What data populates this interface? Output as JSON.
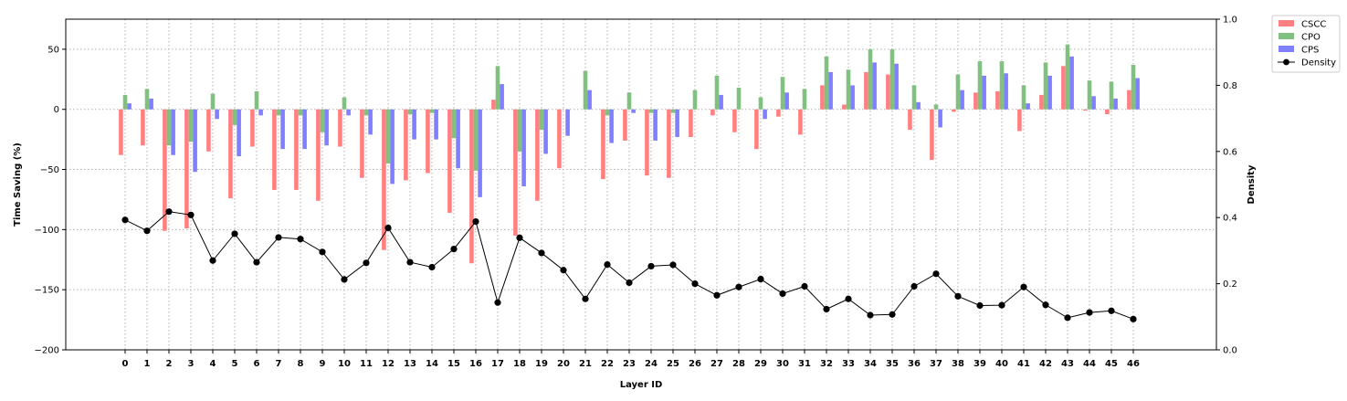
{
  "chart_data": {
    "type": "bar",
    "xlabel": "Layer ID",
    "ylabel": "Time Saving (%)",
    "y2label": "Density",
    "ylim": [
      -200,
      75
    ],
    "y2lim": [
      0.0,
      1.0
    ],
    "yticks": [
      50,
      0,
      -50,
      -100,
      -150,
      -200
    ],
    "yticklabels": [
      "50",
      "0",
      "−50",
      "−100",
      "−150",
      "−200"
    ],
    "y2ticks": [
      1.0,
      0.8,
      0.6,
      0.4,
      0.2,
      0.0
    ],
    "y2ticklabels": [
      "1.0",
      "0.8",
      "0.6",
      "0.4",
      "0.2",
      "0.0"
    ],
    "grid": true,
    "legend_position": "outside-top-right",
    "categories": [
      "0",
      "1",
      "2",
      "3",
      "4",
      "5",
      "6",
      "7",
      "8",
      "9",
      "10",
      "11",
      "12",
      "13",
      "14",
      "15",
      "16",
      "17",
      "18",
      "19",
      "20",
      "21",
      "22",
      "23",
      "24",
      "25",
      "26",
      "27",
      "28",
      "29",
      "30",
      "31",
      "32",
      "33",
      "34",
      "35",
      "36",
      "37",
      "38",
      "39",
      "40",
      "41",
      "42",
      "43",
      "44",
      "45",
      "46"
    ],
    "series": [
      {
        "name": "CSCC",
        "kind": "bar",
        "color": "#ff8080",
        "values": [
          -38,
          -30,
          -101,
          -99,
          -35,
          -74,
          -31,
          -67,
          -67,
          -76,
          -31,
          -57,
          -117,
          -59,
          -53,
          -86,
          -128,
          8,
          -105,
          -76,
          -49,
          0,
          -58,
          -26,
          -55,
          -57,
          -23,
          -5,
          -19,
          -33,
          -6,
          -21,
          20,
          4,
          31,
          29,
          -17,
          -42,
          -2,
          14,
          15,
          -18,
          12,
          36,
          -1,
          -4,
          16
        ]
      },
      {
        "name": "CPO",
        "kind": "bar",
        "color": "#80c080",
        "values": [
          12,
          17,
          -30,
          -27,
          13,
          -13,
          15,
          -5,
          -5,
          -19,
          10,
          -5,
          -45,
          -4,
          -3,
          -24,
          -51,
          36,
          -35,
          -17,
          0,
          32,
          -5,
          14,
          -3,
          -3,
          16,
          28,
          18,
          10,
          27,
          17,
          44,
          33,
          50,
          50,
          20,
          4,
          29,
          40,
          40,
          20,
          39,
          54,
          24,
          23,
          37
        ]
      },
      {
        "name": "CPS",
        "kind": "bar",
        "color": "#8080ff",
        "values": [
          5,
          9,
          -38,
          -52,
          -8,
          -39,
          -5,
          -33,
          -33,
          -30,
          -5,
          -21,
          -62,
          -25,
          -25,
          -49,
          -73,
          21,
          -64,
          -37,
          -22,
          16,
          -28,
          -3,
          -26,
          -23,
          0,
          12,
          0,
          -8,
          14,
          0,
          31,
          20,
          39,
          38,
          6,
          -15,
          16,
          28,
          30,
          5,
          28,
          44,
          11,
          9,
          26
        ]
      },
      {
        "name": "Density",
        "kind": "line",
        "color": "#000000",
        "axis": "right",
        "values": [
          0.393,
          0.36,
          0.418,
          0.408,
          0.27,
          0.351,
          0.265,
          0.34,
          0.335,
          0.296,
          0.213,
          0.263,
          0.369,
          0.265,
          0.25,
          0.305,
          0.388,
          0.143,
          0.339,
          0.293,
          0.241,
          0.154,
          0.258,
          0.203,
          0.253,
          0.257,
          0.2,
          0.165,
          0.19,
          0.214,
          0.17,
          0.192,
          0.123,
          0.154,
          0.105,
          0.107,
          0.192,
          0.23,
          0.162,
          0.134,
          0.135,
          0.19,
          0.136,
          0.097,
          0.113,
          0.118,
          0.093
        ]
      }
    ]
  }
}
